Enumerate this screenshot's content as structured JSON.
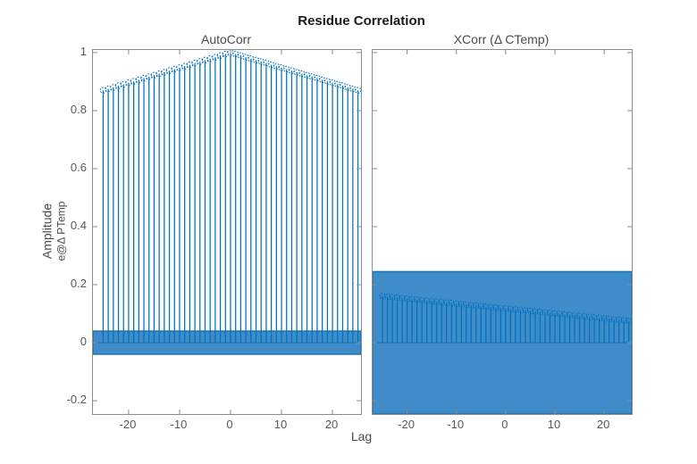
{
  "figure": {
    "title": "Residue Correlation",
    "xlabel": "Lag",
    "ylabel_main": "Amplitude",
    "ylabel_sub": "e@Δ PTemp",
    "colors": {
      "stem": "#0072BD",
      "marker": "#0072BD",
      "band_fill": "#3F8CC9",
      "band_edge": "#1E6FAD",
      "axis": "#8c8c8c",
      "tick_text": "#575757",
      "label_text": "#4a4a4a",
      "title_text": "#1b1b1b"
    }
  },
  "chart_data": [
    {
      "type": "stem",
      "title": "AutoCorr",
      "xlabel": "Lag",
      "ylabel": "Amplitude e@Δ PTemp",
      "grid": false,
      "legend": null,
      "xlim": [
        -27,
        25.6
      ],
      "ylim": [
        -0.246,
        1.009
      ],
      "xticks": [
        -20,
        -10,
        0,
        10,
        20
      ],
      "yticks": [
        -0.2,
        0,
        0.2,
        0.4,
        0.6,
        0.8,
        1
      ],
      "ytick_labels_visible": true,
      "confidence_band": [
        -0.04,
        0.04
      ],
      "x": [
        -25,
        -24,
        -23,
        -22,
        -21,
        -20,
        -19,
        -18,
        -17,
        -16,
        -15,
        -14,
        -13,
        -12,
        -11,
        -10,
        -9,
        -8,
        -7,
        -6,
        -5,
        -4,
        -3,
        -2,
        -1,
        0,
        1,
        2,
        3,
        4,
        5,
        6,
        7,
        8,
        9,
        10,
        11,
        12,
        13,
        14,
        15,
        16,
        17,
        18,
        19,
        20,
        21,
        22,
        23,
        24,
        25
      ],
      "values": [
        0.87,
        0.875,
        0.88,
        0.886,
        0.891,
        0.896,
        0.901,
        0.906,
        0.912,
        0.917,
        0.922,
        0.927,
        0.932,
        0.938,
        0.943,
        0.948,
        0.953,
        0.958,
        0.964,
        0.969,
        0.974,
        0.979,
        0.984,
        0.99,
        0.995,
        1.0,
        0.995,
        0.99,
        0.984,
        0.979,
        0.974,
        0.969,
        0.964,
        0.958,
        0.953,
        0.948,
        0.943,
        0.938,
        0.932,
        0.927,
        0.922,
        0.917,
        0.912,
        0.906,
        0.901,
        0.896,
        0.891,
        0.886,
        0.88,
        0.875,
        0.87
      ]
    },
    {
      "type": "stem",
      "title": "XCorr  (Δ  CTemp)",
      "xlabel": "Lag",
      "ylabel": "",
      "grid": false,
      "legend": null,
      "xlim": [
        -27,
        25.6
      ],
      "ylim": [
        -0.246,
        1.009
      ],
      "xticks": [
        -20,
        -10,
        0,
        10,
        20
      ],
      "yticks": [
        -0.2,
        0,
        0.2,
        0.4,
        0.6,
        0.8,
        1
      ],
      "ytick_labels_visible": false,
      "confidence_band": [
        -0.25,
        0.245
      ],
      "x": [
        -25,
        -24,
        -23,
        -22,
        -21,
        -20,
        -19,
        -18,
        -17,
        -16,
        -15,
        -14,
        -13,
        -12,
        -11,
        -10,
        -9,
        -8,
        -7,
        -6,
        -5,
        -4,
        -3,
        -2,
        -1,
        0,
        1,
        2,
        3,
        4,
        5,
        6,
        7,
        8,
        9,
        10,
        11,
        12,
        13,
        14,
        15,
        16,
        17,
        18,
        19,
        20,
        21,
        22,
        23,
        24,
        25
      ],
      "values": [
        0.16,
        0.1583,
        0.1566,
        0.1549,
        0.1532,
        0.1515,
        0.1498,
        0.1481,
        0.1464,
        0.1447,
        0.143,
        0.1413,
        0.1396,
        0.1379,
        0.1362,
        0.1345,
        0.1328,
        0.1311,
        0.1294,
        0.1277,
        0.126,
        0.1243,
        0.1226,
        0.1209,
        0.1192,
        0.1175,
        0.1158,
        0.1141,
        0.1124,
        0.1107,
        0.109,
        0.1073,
        0.1056,
        0.1039,
        0.1022,
        0.1005,
        0.0988,
        0.0971,
        0.0954,
        0.0937,
        0.092,
        0.0903,
        0.0886,
        0.0869,
        0.0852,
        0.0835,
        0.0818,
        0.0801,
        0.0784,
        0.0767,
        0.075
      ]
    }
  ]
}
